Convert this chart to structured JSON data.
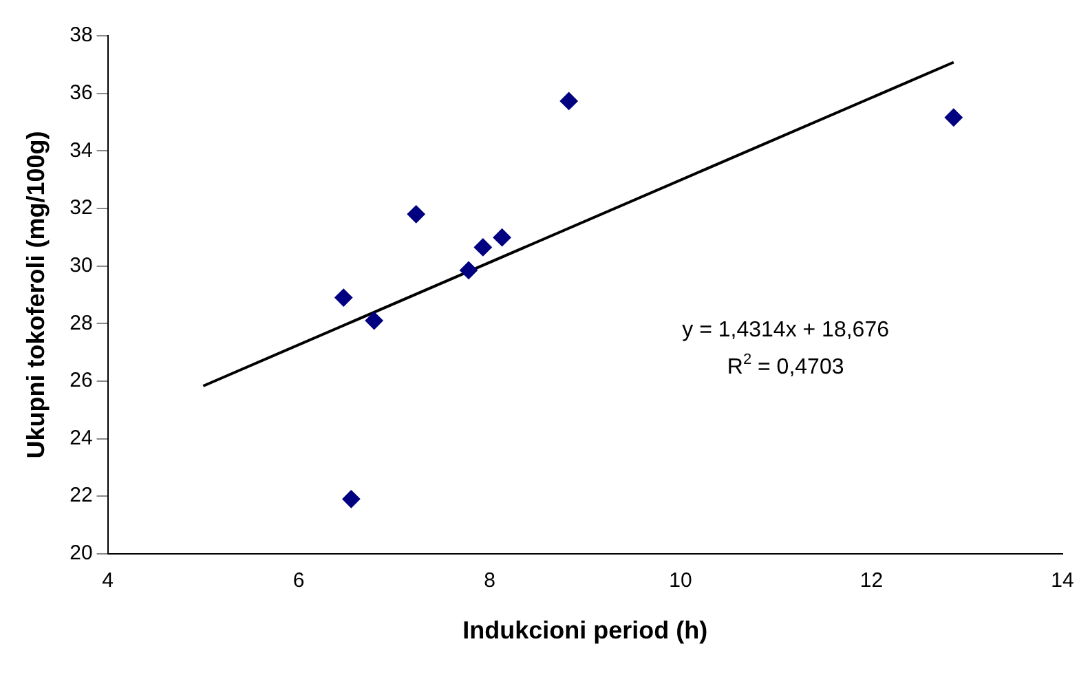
{
  "chart_data": {
    "type": "scatter",
    "xlabel": "Indukcioni period (h)",
    "ylabel": "Ukupni tokoferoli (mg/100g)",
    "x": [
      6.47,
      6.55,
      6.79,
      7.23,
      7.78,
      7.93,
      8.13,
      8.83,
      12.86
    ],
    "series": [
      {
        "color": "#000080",
        "values": [
          28.9,
          21.9,
          28.1,
          31.8,
          29.85,
          30.65,
          30.99,
          35.73,
          35.16
        ],
        "marker": "diamond"
      },
      {
        "type": "line",
        "color": "#000000",
        "x": [
          5,
          12.86
        ],
        "values": [
          25.83,
          37.08
        ],
        "marker": "none"
      }
    ],
    "annotations": [
      "y = 1,4314x + 18,676",
      "R$^{2}$ = 0,4703"
    ],
    "xlim": [
      4,
      14
    ],
    "xticks": [
      4,
      6,
      8,
      10,
      12,
      14
    ],
    "ylim": [
      20,
      38
    ],
    "yticks": [
      20,
      22,
      24,
      26,
      28,
      30,
      32,
      34,
      36,
      38
    ],
    "grid": false,
    "legend": false
  }
}
